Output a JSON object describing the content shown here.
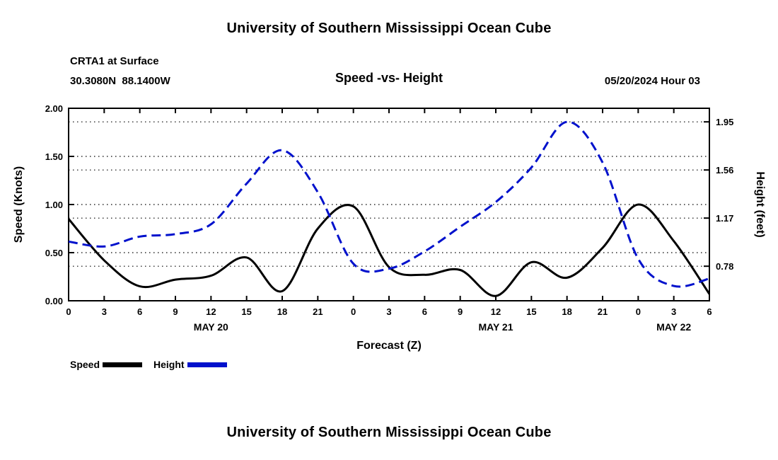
{
  "page": {
    "top_title": "University of Southern Mississippi Ocean Cube",
    "bottom_title": "University of Southern Mississippi Ocean Cube"
  },
  "header": {
    "station": "CRTA1 at Surface",
    "coordinates": "30.3080N  88.1400W",
    "chart_title": "Speed -vs- Height",
    "datetime": "05/20/2024 Hour 03"
  },
  "legend": {
    "speed_label": "Speed",
    "height_label": "Height"
  },
  "colors": {
    "speed_line": "#000000",
    "height_line": "#0011cc"
  },
  "chart_data": {
    "type": "line",
    "title": "Speed -vs- Height",
    "xlabel": "Forecast (Z)",
    "grid": "dotted horizontal lines at every left and right axis tick",
    "legend_position": "bottom-left",
    "x": [
      0,
      3,
      6,
      9,
      12,
      15,
      18,
      21,
      24,
      27,
      30,
      33,
      36,
      39,
      42,
      45,
      48,
      51,
      54
    ],
    "x_tick_labels": [
      "0",
      "3",
      "6",
      "9",
      "12",
      "15",
      "18",
      "21",
      "0",
      "3",
      "6",
      "9",
      "12",
      "15",
      "18",
      "21",
      "0",
      "3",
      "6"
    ],
    "day_labels": [
      {
        "text": "MAY 20",
        "hour": 12
      },
      {
        "text": "MAY 21",
        "hour": 36
      },
      {
        "text": "MAY 22",
        "hour": 51
      }
    ],
    "left_axis": {
      "label": "Speed (Knots)",
      "min": 0.0,
      "max": 2.0,
      "ticks": [
        "0.00",
        "0.50",
        "1.00",
        "1.50",
        "2.00"
      ],
      "tick_values": [
        0.0,
        0.5,
        1.0,
        1.5,
        2.0
      ]
    },
    "right_axis": {
      "label": "Height (feet)",
      "min": 0.5,
      "max": 2.06,
      "ticks": [
        "0.78",
        "1.17",
        "1.56",
        "1.95"
      ],
      "tick_values": [
        0.78,
        1.17,
        1.56,
        1.95
      ]
    },
    "series": [
      {
        "name": "Speed",
        "axis": "left",
        "color": "#000000",
        "style": "solid",
        "values": [
          0.85,
          0.42,
          0.15,
          0.22,
          0.26,
          0.45,
          0.1,
          0.75,
          0.98,
          0.35,
          0.27,
          0.32,
          0.05,
          0.4,
          0.24,
          0.55,
          1.0,
          0.62,
          0.07
        ]
      },
      {
        "name": "Height",
        "axis": "right",
        "color": "#0011cc",
        "style": "dashed",
        "values": [
          0.98,
          0.94,
          1.02,
          1.04,
          1.12,
          1.45,
          1.72,
          1.38,
          0.8,
          0.76,
          0.9,
          1.1,
          1.3,
          1.58,
          1.95,
          1.62,
          0.84,
          0.62,
          0.68
        ]
      }
    ]
  }
}
